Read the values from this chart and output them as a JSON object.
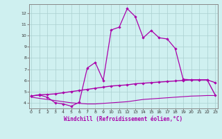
{
  "xlabel": "Windchill (Refroidissement éolien,°C)",
  "bg_color": "#cff0f0",
  "grid_color": "#aacfcf",
  "line_color": "#aa00aa",
  "spine_color": "#888888",
  "x_ticks": [
    0,
    1,
    2,
    3,
    4,
    5,
    6,
    7,
    8,
    9,
    10,
    11,
    12,
    13,
    14,
    15,
    16,
    17,
    18,
    19,
    20,
    21,
    22,
    23
  ],
  "y_ticks": [
    4,
    5,
    6,
    7,
    8,
    9,
    10,
    11,
    12
  ],
  "ylim": [
    3.5,
    12.8
  ],
  "xlim": [
    -0.3,
    23.3
  ],
  "line1_x": [
    0,
    1,
    2,
    3,
    4,
    5,
    6,
    7,
    8,
    9,
    10,
    11,
    12,
    13,
    14,
    15,
    16,
    17,
    18,
    19,
    20,
    21,
    22,
    23
  ],
  "line1_y": [
    4.6,
    4.7,
    4.5,
    4.0,
    3.9,
    3.7,
    4.05,
    7.1,
    7.6,
    6.0,
    10.5,
    10.75,
    12.4,
    11.7,
    9.8,
    10.45,
    9.8,
    9.7,
    8.85,
    6.1,
    6.05,
    6.05,
    6.05,
    5.8
  ],
  "line2_x": [
    0,
    1,
    2,
    3,
    4,
    5,
    6,
    7,
    8,
    9,
    10,
    11,
    12,
    13,
    14,
    15,
    16,
    17,
    18,
    19,
    20,
    21,
    22,
    23
  ],
  "line2_y": [
    4.6,
    4.72,
    4.75,
    4.8,
    4.9,
    5.0,
    5.1,
    5.2,
    5.3,
    5.4,
    5.5,
    5.55,
    5.6,
    5.7,
    5.75,
    5.8,
    5.85,
    5.9,
    5.95,
    6.0,
    6.05,
    6.05,
    6.05,
    4.7
  ],
  "line3_x": [
    0,
    1,
    2,
    3,
    4,
    5,
    6,
    7,
    8,
    9,
    10,
    11,
    12,
    13,
    14,
    15,
    16,
    17,
    18,
    19,
    20,
    21,
    22,
    23
  ],
  "line3_y": [
    4.5,
    4.4,
    4.3,
    4.2,
    4.1,
    4.0,
    3.95,
    3.9,
    3.9,
    3.95,
    4.0,
    4.05,
    4.1,
    4.2,
    4.3,
    4.35,
    4.4,
    4.45,
    4.5,
    4.55,
    4.6,
    4.62,
    4.65,
    4.65
  ]
}
